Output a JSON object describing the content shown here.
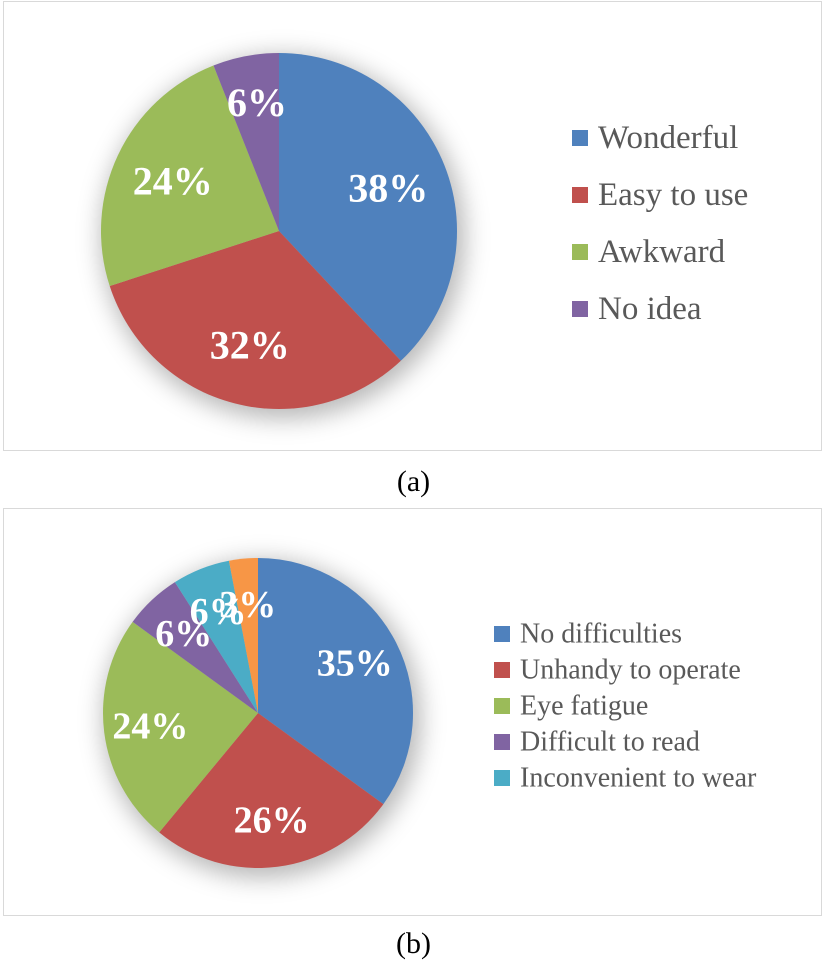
{
  "captions": {
    "a": "(a)",
    "b": "(b)"
  },
  "chart_data": [
    {
      "type": "pie",
      "panel": "(a)",
      "categories": [
        "Wonderful",
        "Easy to use",
        "Awkward",
        "No idea"
      ],
      "values": [
        38,
        32,
        24,
        6
      ],
      "labels": [
        "38%",
        "32%",
        "24%",
        "6%"
      ],
      "colors": [
        "#4f81bd",
        "#c0504d",
        "#9bbb59",
        "#8064a2"
      ],
      "legend": "right"
    },
    {
      "type": "pie",
      "panel": "(b)",
      "categories": [
        "No difficulties",
        "Unhandy to operate",
        "Eye fatigue",
        "Difficult to read",
        "Inconvenient to wear",
        ""
      ],
      "values": [
        35,
        26,
        24,
        6,
        6,
        3
      ],
      "labels": [
        "35%",
        "26%",
        "24%",
        "6%",
        "6%",
        "3%"
      ],
      "colors": [
        "#4f81bd",
        "#c0504d",
        "#9bbb59",
        "#8064a2",
        "#4bacc6",
        "#f79646"
      ],
      "legend": "right"
    }
  ]
}
